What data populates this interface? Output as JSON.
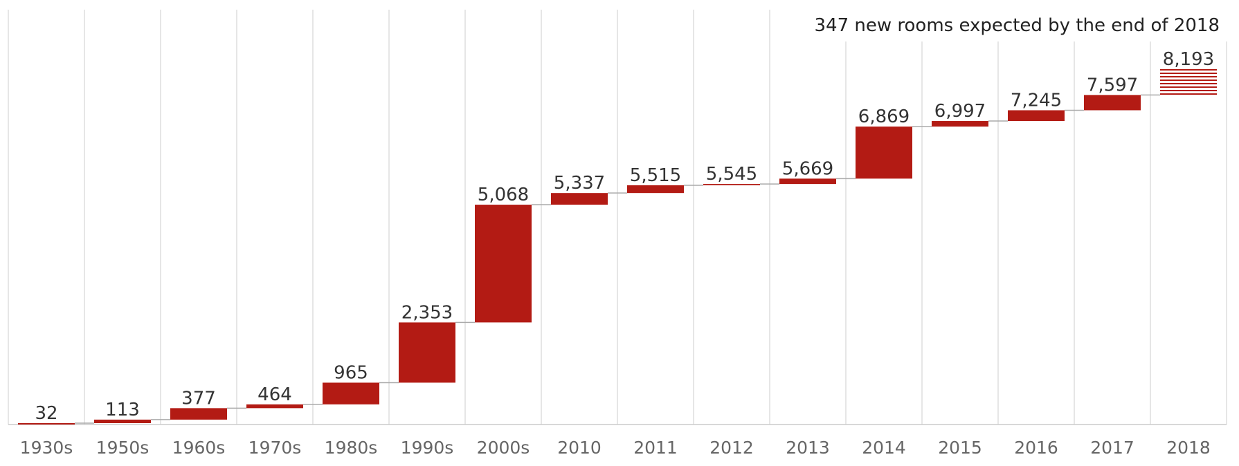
{
  "chart_data": {
    "type": "bar",
    "subtype": "waterfall",
    "annotation": "347 new rooms expected by the end of 2018",
    "categories": [
      "1930s",
      "1950s",
      "1960s",
      "1970s",
      "1980s",
      "1990s",
      "2000s",
      "2010",
      "2011",
      "2012",
      "2013",
      "2014",
      "2015",
      "2016",
      "2017",
      "2018"
    ],
    "values": [
      32,
      113,
      377,
      464,
      965,
      2353,
      5068,
      5337,
      5515,
      5545,
      5669,
      6869,
      6997,
      7245,
      7597,
      8193
    ],
    "projected": [
      false,
      false,
      false,
      false,
      false,
      false,
      false,
      false,
      false,
      false,
      false,
      false,
      false,
      false,
      false,
      true
    ],
    "ylim": [
      0,
      8193
    ],
    "grid": "vertical",
    "colors": {
      "bar": "#b31b14",
      "projected_stripe": "#b31b14",
      "gridline": "#dddddd",
      "connector": "#aaaaaa",
      "axis": "#cccccc"
    }
  }
}
